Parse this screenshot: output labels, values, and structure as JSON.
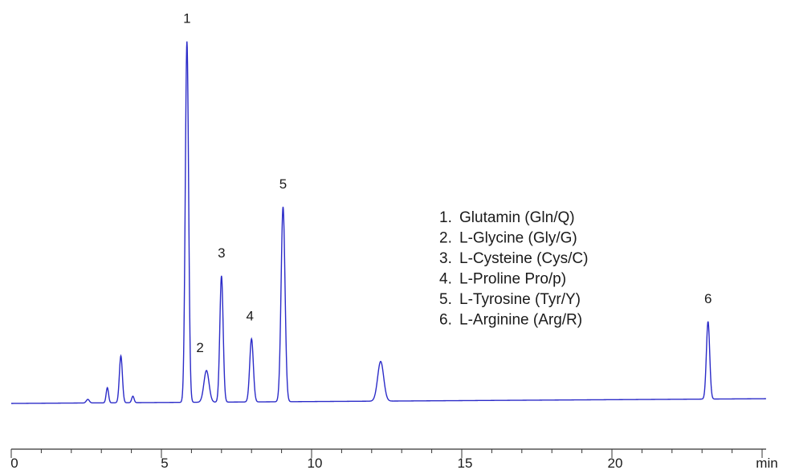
{
  "chart_data": {
    "type": "line",
    "title": "",
    "xlabel": "",
    "ylabel": "",
    "x_unit": "min",
    "xlim": [
      0,
      25
    ],
    "x_ticks": [
      0,
      5,
      10,
      15,
      20
    ],
    "x_tick_labels": [
      "0",
      "5",
      "10",
      "15",
      "20"
    ],
    "y_axis_visible": false,
    "grid": false,
    "line_color": "#2b2bc8",
    "baseline": {
      "start": 0.0,
      "end": 0.013
    },
    "peaks": [
      {
        "rt": 2.55,
        "height": 0.01,
        "width": 0.05,
        "label": ""
      },
      {
        "rt": 3.2,
        "height": 0.042,
        "width": 0.04,
        "label": ""
      },
      {
        "rt": 3.65,
        "height": 0.13,
        "width": 0.05,
        "label": ""
      },
      {
        "rt": 4.05,
        "height": 0.018,
        "width": 0.04,
        "label": ""
      },
      {
        "rt": 5.85,
        "height": 1.0,
        "width": 0.055,
        "label": "1"
      },
      {
        "rt": 6.5,
        "height": 0.088,
        "width": 0.085,
        "label": "2"
      },
      {
        "rt": 7.0,
        "height": 0.35,
        "width": 0.055,
        "label": "3"
      },
      {
        "rt": 8.0,
        "height": 0.175,
        "width": 0.06,
        "label": "4"
      },
      {
        "rt": 9.05,
        "height": 0.54,
        "width": 0.065,
        "label": "5"
      },
      {
        "rt": 12.3,
        "height": 0.11,
        "width": 0.1,
        "label": ""
      },
      {
        "rt": 23.2,
        "height": 0.215,
        "width": 0.055,
        "label": "6"
      }
    ],
    "legend_position": "center-right",
    "legend": [
      {
        "num": "1.",
        "text": "Glutamin  (Gln/Q)"
      },
      {
        "num": "2.",
        "text": "L-Glycine (Gly/G)"
      },
      {
        "num": "3.",
        "text": "L-Cysteine (Cys/C)"
      },
      {
        "num": "4.",
        "text": "L-Proline Pro/p)"
      },
      {
        "num": "5.",
        "text": "L-Tyrosine (Tyr/Y)"
      },
      {
        "num": "6.",
        "text": "L-Arginine (Arg/R)"
      }
    ]
  }
}
